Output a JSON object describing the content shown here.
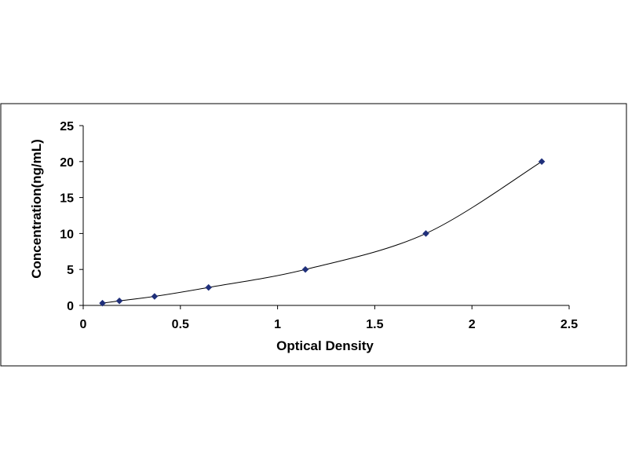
{
  "chart_data": {
    "type": "scatter",
    "title": "",
    "xlabel": "Optical Density",
    "ylabel": "Concentration(ng/mL)",
    "xlim": [
      0,
      2.5
    ],
    "ylim": [
      0,
      25
    ],
    "xticks": [
      "0",
      "0.5",
      "1",
      "1.5",
      "2",
      "2.5"
    ],
    "yticks": [
      "0",
      "5",
      "10",
      "15",
      "20",
      "25"
    ],
    "grid": false,
    "legend": "none",
    "series": [
      {
        "x": [
          0.099,
          0.186,
          0.367,
          0.645,
          1.143,
          1.763,
          2.359
        ],
        "y": [
          0.31,
          0.63,
          1.25,
          2.5,
          5,
          10,
          20
        ],
        "marker": "diamond",
        "line": "smooth"
      }
    ],
    "colors": {
      "marker": "#1F2F7A",
      "line": "#000000",
      "axis": "#000000",
      "frame": "#000000"
    }
  }
}
